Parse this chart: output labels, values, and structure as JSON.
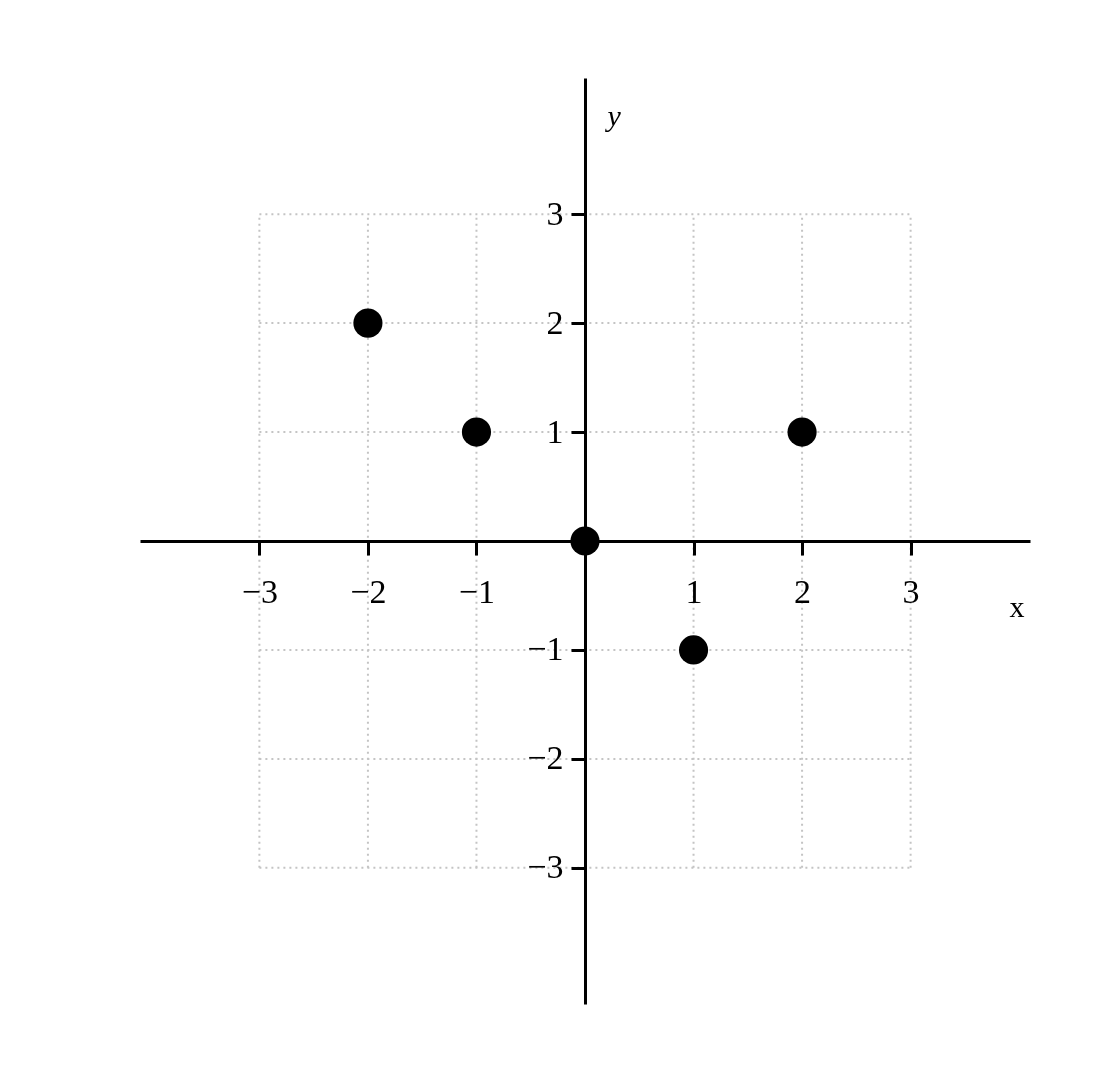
{
  "chart_data": {
    "type": "scatter",
    "xlabel": "x",
    "ylabel": "y",
    "x": [
      -2,
      -1,
      0,
      1,
      2
    ],
    "series": [
      {
        "color": "#000000",
        "values": [
          2,
          1,
          0,
          -1,
          1
        ]
      }
    ],
    "xlim": [
      -4.1,
      4.1
    ],
    "ylim": [
      -4.25,
      4.25
    ],
    "xticks": [
      -3,
      -2,
      -1,
      1,
      2,
      3
    ],
    "yticks": [
      -3,
      -2,
      -1,
      1,
      2,
      3
    ],
    "grid": true,
    "marker": "circle"
  }
}
